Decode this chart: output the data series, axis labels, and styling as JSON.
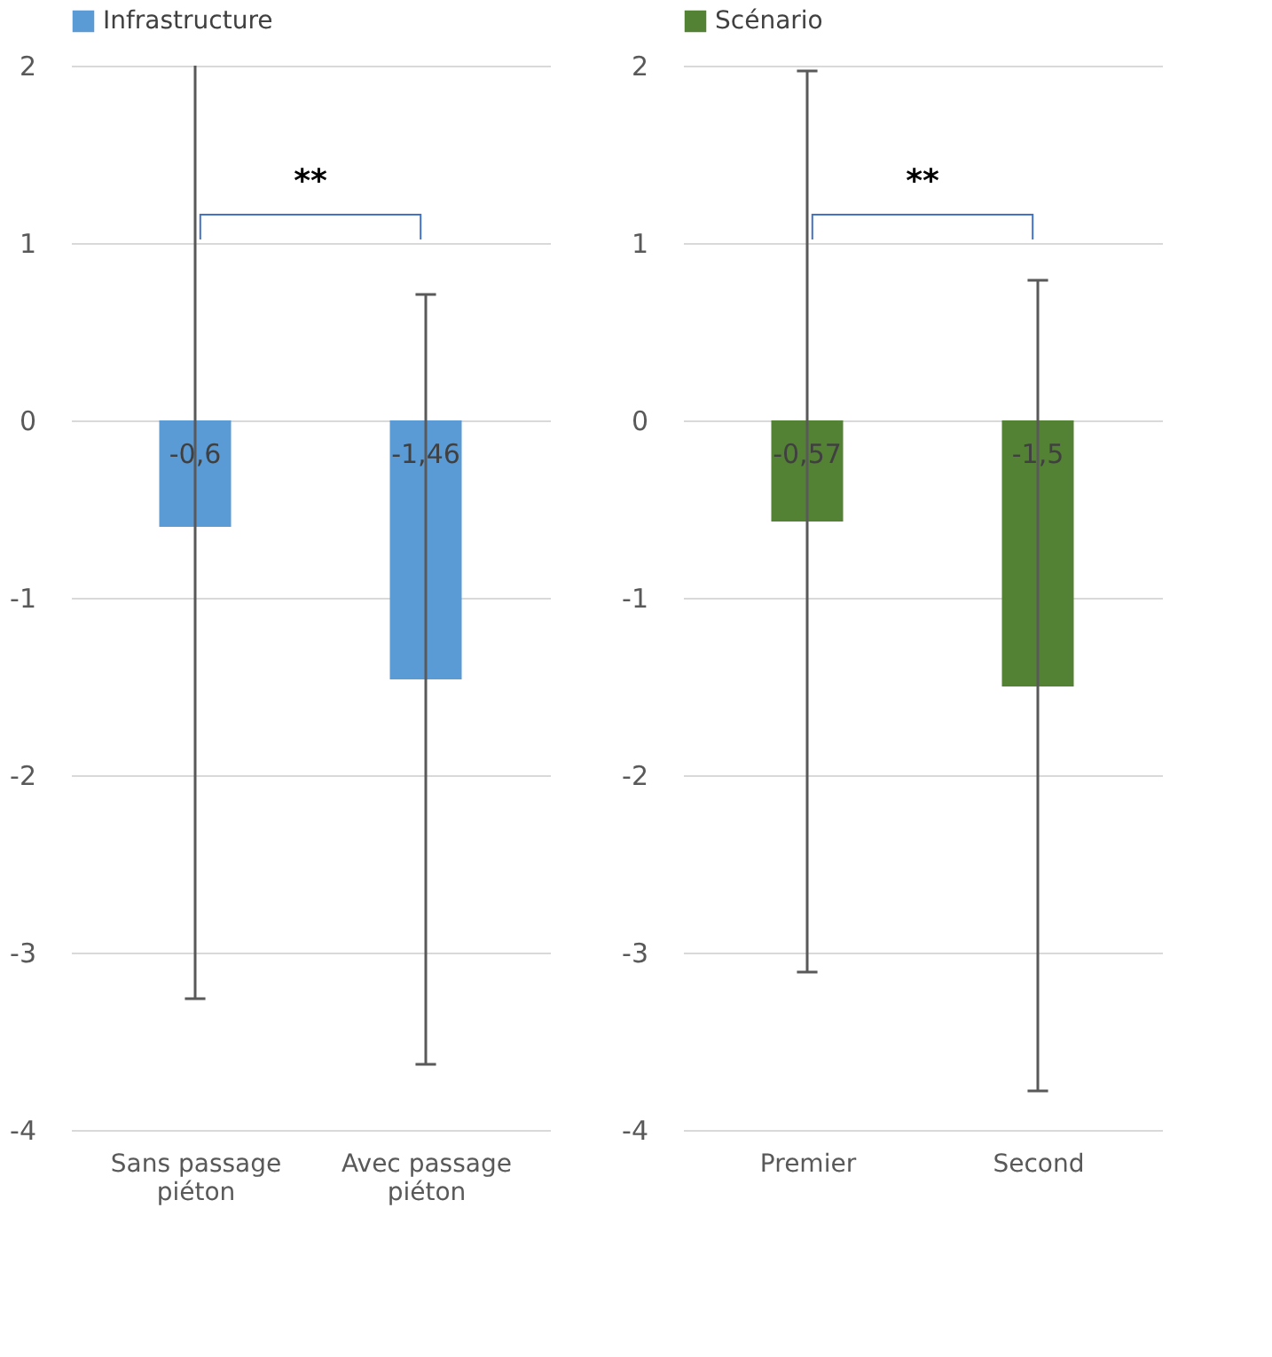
{
  "chart_data": [
    {
      "type": "bar",
      "categories": [
        "Sans passage piéton",
        "Avec passage piéton"
      ],
      "ylim": [
        -4,
        2
      ],
      "yticks": [
        -4,
        -3,
        -2,
        -1,
        0,
        1,
        2
      ],
      "grid": "y",
      "legend": "top",
      "series": [
        {
          "name": "Infrastructure",
          "color": "#5b9bd5",
          "values": [
            -0.6,
            -1.46
          ],
          "errors": [
            [
              -3.26,
              2
            ],
            [
              -3.63,
              0.71
            ]
          ],
          "value_labels": [
            "-0,6",
            "-1,46"
          ]
        }
      ],
      "annotations": [
        "**"
      ]
    },
    {
      "type": "bar",
      "categories": [
        "Premier",
        "Second"
      ],
      "ylim": [
        -4,
        2
      ],
      "yticks": [
        -4,
        -3,
        -2,
        -1,
        0,
        1,
        2
      ],
      "grid": "y",
      "legend": "top",
      "series": [
        {
          "name": "Scénario",
          "color": "#548235",
          "values": [
            -0.57,
            -1.5
          ],
          "errors": [
            [
              -3.11,
              1.97
            ],
            [
              -3.78,
              0.79
            ]
          ],
          "value_labels": [
            "-0,57",
            "-1,5"
          ]
        }
      ],
      "annotations": [
        "**"
      ]
    }
  ]
}
